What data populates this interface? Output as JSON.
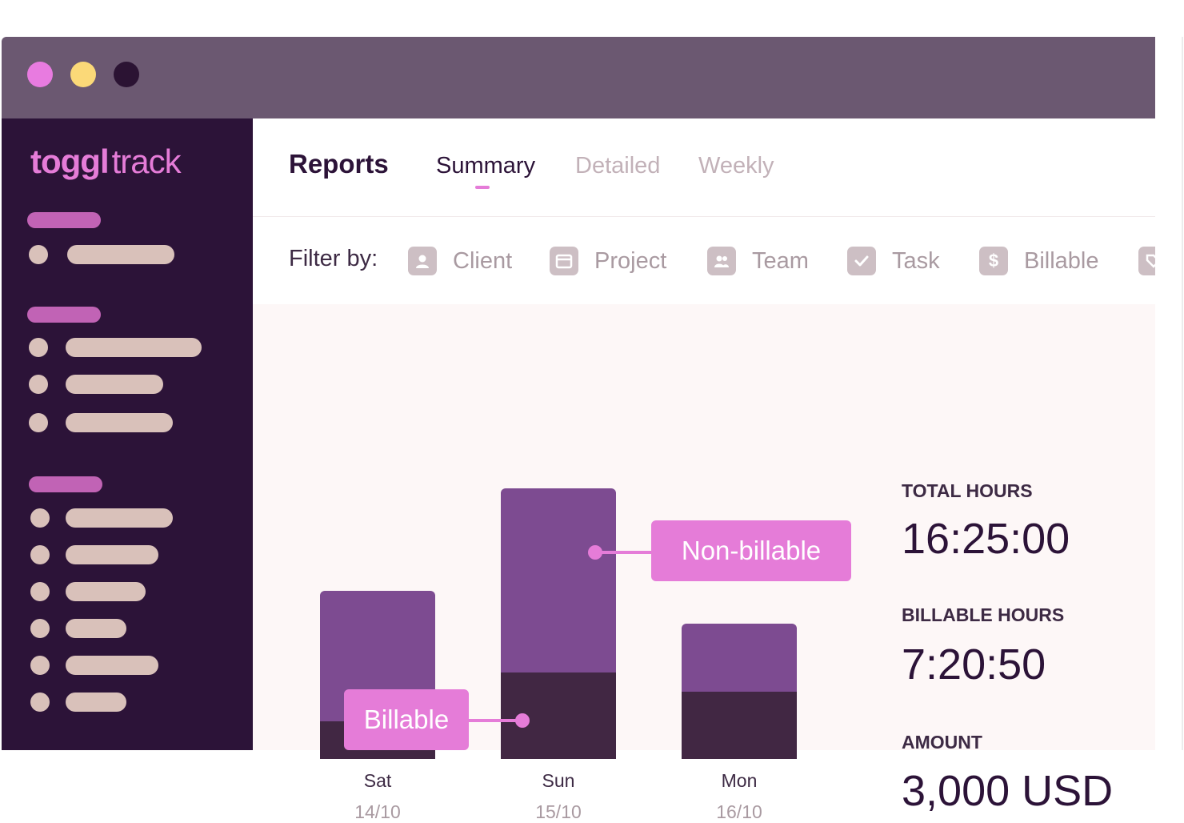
{
  "brand": {
    "name_bold": "toggl",
    "name_light": "track"
  },
  "header": {
    "title": "Reports",
    "tabs": [
      {
        "label": "Summary",
        "active": true
      },
      {
        "label": "Detailed",
        "active": false
      },
      {
        "label": "Weekly",
        "active": false
      }
    ]
  },
  "filters": {
    "label": "Filter by:",
    "items": [
      {
        "label": "Client",
        "icon": "person-icon"
      },
      {
        "label": "Project",
        "icon": "folder-icon"
      },
      {
        "label": "Team",
        "icon": "team-icon"
      },
      {
        "label": "Task",
        "icon": "checkbox-icon"
      },
      {
        "label": "Billable",
        "icon": "dollar-icon"
      }
    ]
  },
  "chart_data": {
    "type": "bar",
    "stacked": true,
    "categories": [
      "Sat",
      "Sun",
      "Mon"
    ],
    "category_dates": [
      "14/10",
      "15/10",
      "16/10"
    ],
    "series": [
      {
        "name": "Billable",
        "values": [
          0.14,
          0.32,
          0.25
        ]
      },
      {
        "name": "Non-billable",
        "values": [
          0.48,
          0.68,
          0.25
        ]
      }
    ],
    "annotations": [
      "Non-billable",
      "Billable"
    ],
    "colors": {
      "billable": "#412743",
      "non_billable": "#7d4b91",
      "callout": "#e57cd8"
    }
  },
  "stats": {
    "total_hours": {
      "label": "TOTAL HOURS",
      "value": "16:25:00"
    },
    "billable_hours": {
      "label": "BILLABLE HOURS",
      "value": "7:20:50"
    },
    "amount": {
      "label": "AMOUNT",
      "value": "3,000 USD"
    }
  },
  "colors": {
    "titlebar": "#6b5871",
    "sidebar": "#2c1338",
    "accent": "#e57cd8",
    "window_dots": [
      "#e87be0",
      "#fbd978",
      "#2b1333"
    ]
  }
}
